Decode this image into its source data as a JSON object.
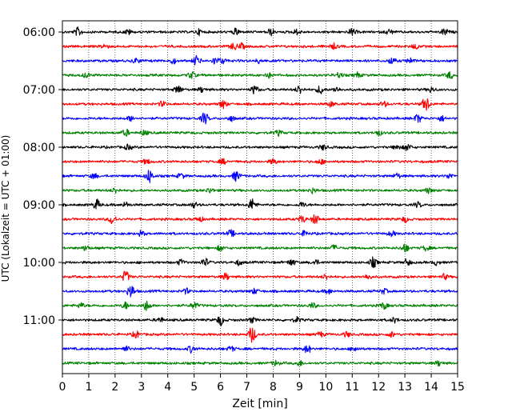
{
  "chart_data": {
    "type": "line",
    "title": "",
    "xlabel": "Zeit  [min]",
    "ylabel": "UTC (Lokalzeit = UTC + 01:00)",
    "xlim": [
      0,
      15
    ],
    "x_ticks": [
      0,
      1,
      2,
      3,
      4,
      5,
      6,
      7,
      8,
      9,
      10,
      11,
      12,
      13,
      14,
      15
    ],
    "x_tick_labels": [
      "0",
      "1",
      "2",
      "3",
      "4",
      "5",
      "6",
      "7",
      "8",
      "9",
      "10",
      "11",
      "12",
      "13",
      "14",
      "15"
    ],
    "y_tick_labels": [
      "06:00",
      "07:00",
      "08:00",
      "09:00",
      "10:00",
      "11:00"
    ],
    "vertical_grid": true,
    "trace_minutes": 15,
    "row_colors": [
      "#000000",
      "#ff0000",
      "#0000ff",
      "#008000"
    ],
    "series": [
      {
        "start": "06:00",
        "color": "#000000",
        "events": [
          [
            0.6,
            5
          ],
          [
            2.5,
            3
          ],
          [
            5.2,
            3
          ],
          [
            6.6,
            4
          ],
          [
            7.9,
            4
          ],
          [
            8.9,
            3
          ],
          [
            11.0,
            4
          ],
          [
            12.4,
            3
          ],
          [
            14.5,
            4
          ]
        ]
      },
      {
        "start": "06:15",
        "color": "#ff0000",
        "events": [
          [
            1.6,
            3
          ],
          [
            6.5,
            4
          ],
          [
            6.8,
            3
          ],
          [
            10.3,
            3
          ],
          [
            13.4,
            3
          ]
        ]
      },
      {
        "start": "06:30",
        "color": "#0000ff",
        "events": [
          [
            2.8,
            3
          ],
          [
            4.2,
            3
          ],
          [
            5.1,
            6
          ],
          [
            5.8,
            4
          ],
          [
            6.1,
            3
          ],
          [
            7.5,
            3
          ],
          [
            12.5,
            4
          ],
          [
            13.2,
            3
          ]
        ]
      },
      {
        "start": "06:45",
        "color": "#008000",
        "events": [
          [
            0.9,
            3
          ],
          [
            4.9,
            4
          ],
          [
            7.8,
            3
          ],
          [
            10.5,
            3
          ],
          [
            11.2,
            3
          ],
          [
            14.7,
            4
          ]
        ]
      },
      {
        "start": "07:00",
        "color": "#000000",
        "events": [
          [
            4.4,
            5
          ],
          [
            5.3,
            3
          ],
          [
            7.3,
            5
          ],
          [
            9.0,
            5
          ],
          [
            9.8,
            5
          ],
          [
            10.4,
            3
          ],
          [
            14.0,
            3
          ]
        ]
      },
      {
        "start": "07:15",
        "color": "#ff0000",
        "events": [
          [
            3.8,
            3
          ],
          [
            6.1,
            5
          ],
          [
            10.2,
            3
          ],
          [
            12.2,
            3
          ],
          [
            13.8,
            9
          ]
        ]
      },
      {
        "start": "07:30",
        "color": "#0000ff",
        "events": [
          [
            2.6,
            3
          ],
          [
            5.4,
            7
          ],
          [
            6.4,
            3
          ],
          [
            13.5,
            5
          ],
          [
            14.4,
            3
          ]
        ]
      },
      {
        "start": "07:45",
        "color": "#008000",
        "events": [
          [
            2.4,
            4
          ],
          [
            3.1,
            3
          ],
          [
            8.2,
            3
          ],
          [
            12.0,
            3
          ]
        ]
      },
      {
        "start": "08:00",
        "color": "#000000",
        "events": [
          [
            2.5,
            3
          ],
          [
            9.9,
            3
          ],
          [
            12.7,
            3
          ],
          [
            13.1,
            4
          ]
        ]
      },
      {
        "start": "08:15",
        "color": "#ff0000",
        "events": [
          [
            3.2,
            3
          ],
          [
            6.1,
            3
          ],
          [
            8.0,
            3
          ],
          [
            9.8,
            3
          ]
        ]
      },
      {
        "start": "08:30",
        "color": "#0000ff",
        "events": [
          [
            1.2,
            3
          ],
          [
            3.3,
            8
          ],
          [
            4.5,
            3
          ],
          [
            6.6,
            6
          ],
          [
            12.7,
            3
          ],
          [
            14.7,
            3
          ]
        ]
      },
      {
        "start": "08:45",
        "color": "#008000",
        "events": [
          [
            2.0,
            3
          ],
          [
            5.6,
            3
          ],
          [
            9.5,
            3
          ],
          [
            13.9,
            3
          ]
        ]
      },
      {
        "start": "09:00",
        "color": "#000000",
        "events": [
          [
            1.3,
            6
          ],
          [
            2.4,
            3
          ],
          [
            5.0,
            3
          ],
          [
            7.2,
            7
          ],
          [
            9.1,
            3
          ],
          [
            13.5,
            3
          ]
        ]
      },
      {
        "start": "09:15",
        "color": "#ff0000",
        "events": [
          [
            1.9,
            6
          ],
          [
            5.2,
            3
          ],
          [
            9.1,
            4
          ],
          [
            9.6,
            6
          ],
          [
            13.0,
            3
          ]
        ]
      },
      {
        "start": "09:30",
        "color": "#0000ff",
        "events": [
          [
            3.0,
            3
          ],
          [
            6.4,
            4
          ],
          [
            9.2,
            3
          ],
          [
            12.5,
            3
          ]
        ]
      },
      {
        "start": "09:45",
        "color": "#008000",
        "events": [
          [
            0.9,
            3
          ],
          [
            6.0,
            3
          ],
          [
            10.3,
            3
          ],
          [
            13.0,
            5
          ],
          [
            13.8,
            3
          ]
        ]
      },
      {
        "start": "10:00",
        "color": "#000000",
        "events": [
          [
            4.5,
            3
          ],
          [
            5.4,
            5
          ],
          [
            6.7,
            3
          ],
          [
            8.7,
            4
          ],
          [
            9.6,
            3
          ],
          [
            11.8,
            6
          ],
          [
            13.1,
            4
          ],
          [
            14.2,
            3
          ]
        ]
      },
      {
        "start": "10:15",
        "color": "#ff0000",
        "events": [
          [
            2.4,
            7
          ],
          [
            6.2,
            4
          ],
          [
            10.0,
            3
          ],
          [
            11.6,
            3
          ],
          [
            14.5,
            3
          ]
        ]
      },
      {
        "start": "10:30",
        "color": "#0000ff",
        "events": [
          [
            2.6,
            8
          ],
          [
            4.7,
            3
          ],
          [
            7.3,
            3
          ],
          [
            10.1,
            3
          ],
          [
            12.2,
            3
          ]
        ]
      },
      {
        "start": "10:45",
        "color": "#008000",
        "events": [
          [
            0.7,
            3
          ],
          [
            2.4,
            4
          ],
          [
            3.2,
            6
          ],
          [
            5.0,
            4
          ],
          [
            9.5,
            3
          ],
          [
            12.2,
            4
          ]
        ]
      },
      {
        "start": "11:00",
        "color": "#000000",
        "events": [
          [
            3.7,
            3
          ],
          [
            6.0,
            6
          ],
          [
            7.2,
            3
          ],
          [
            8.9,
            3
          ],
          [
            12.6,
            3
          ]
        ]
      },
      {
        "start": "11:15",
        "color": "#ff0000",
        "events": [
          [
            2.8,
            4
          ],
          [
            7.2,
            10
          ],
          [
            9.8,
            3
          ],
          [
            10.8,
            3
          ],
          [
            12.5,
            3
          ]
        ]
      },
      {
        "start": "11:30",
        "color": "#0000ff",
        "events": [
          [
            2.4,
            3
          ],
          [
            4.9,
            4
          ],
          [
            6.4,
            3
          ],
          [
            9.3,
            5
          ],
          [
            11.1,
            3
          ]
        ]
      },
      {
        "start": "11:45",
        "color": "#008000",
        "events": [
          [
            8.1,
            3
          ],
          [
            9.0,
            3
          ],
          [
            14.3,
            3
          ]
        ]
      }
    ]
  }
}
